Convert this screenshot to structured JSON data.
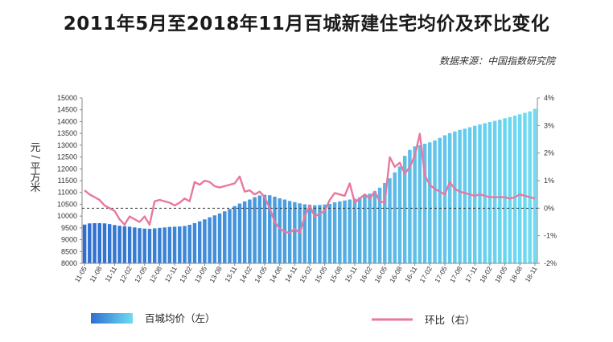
{
  "title": "2011年5月至2018年11月百城新建住宅均价及环比变化",
  "source": "数据来源：中国指数研究院",
  "chart_data": {
    "type": "bar+line",
    "ylabel_left": "元/平方米",
    "ylim_left": [
      8000,
      15000
    ],
    "yticks_left": [
      "8000",
      "8500",
      "9000",
      "9500",
      "10000",
      "10500",
      "11000",
      "11500",
      "12000",
      "12500",
      "13000",
      "13500",
      "14000",
      "14500",
      "15000"
    ],
    "ylim_right": [
      -2,
      4
    ],
    "yticks_right": [
      "-2%",
      "-1%",
      "0%",
      "1%",
      "2%",
      "3%",
      "4%"
    ],
    "x_tick_labels": [
      "11-05",
      "11-08",
      "11-11",
      "12-02",
      "12-05",
      "12-08",
      "12-11",
      "13-02",
      "13-05",
      "13-08",
      "13-11",
      "14-02",
      "14-05",
      "14-08",
      "14-11",
      "15-02",
      "15-05",
      "15-08",
      "15-11",
      "16-02",
      "16-05",
      "16-08",
      "16-11",
      "17-02",
      "17-05",
      "17-08",
      "17-11",
      "18-02",
      "18-05",
      "18-08",
      "18-11"
    ],
    "months": [
      "11-05",
      "11-06",
      "11-07",
      "11-08",
      "11-09",
      "11-10",
      "11-11",
      "11-12",
      "12-01",
      "12-02",
      "12-03",
      "12-04",
      "12-05",
      "12-06",
      "12-07",
      "12-08",
      "12-09",
      "12-10",
      "12-11",
      "12-12",
      "13-01",
      "13-02",
      "13-03",
      "13-04",
      "13-05",
      "13-06",
      "13-07",
      "13-08",
      "13-09",
      "13-10",
      "13-11",
      "13-12",
      "14-01",
      "14-02",
      "14-03",
      "14-04",
      "14-05",
      "14-06",
      "14-07",
      "14-08",
      "14-09",
      "14-10",
      "14-11",
      "14-12",
      "15-01",
      "15-02",
      "15-03",
      "15-04",
      "15-05",
      "15-06",
      "15-07",
      "15-08",
      "15-09",
      "15-10",
      "15-11",
      "15-12",
      "16-01",
      "16-02",
      "16-03",
      "16-04",
      "16-05",
      "16-06",
      "16-07",
      "16-08",
      "16-09",
      "16-10",
      "16-11",
      "16-12",
      "17-01",
      "17-02",
      "17-03",
      "17-04",
      "17-05",
      "17-06",
      "17-07",
      "17-08",
      "17-09",
      "17-10",
      "17-11",
      "17-12",
      "18-01",
      "18-02",
      "18-03",
      "18-04",
      "18-05",
      "18-06",
      "18-07",
      "18-08",
      "18-09",
      "18-10",
      "18-11"
    ],
    "series": [
      {
        "name": "百城均价（左）",
        "kind": "bar",
        "axis": "left",
        "values": [
          9640,
          9690,
          9700,
          9700,
          9690,
          9660,
          9620,
          9590,
          9570,
          9550,
          9520,
          9490,
          9470,
          9460,
          9480,
          9500,
          9520,
          9540,
          9550,
          9560,
          9580,
          9630,
          9700,
          9780,
          9860,
          9950,
          10030,
          10110,
          10200,
          10300,
          10420,
          10530,
          10620,
          10700,
          10800,
          10870,
          10900,
          10880,
          10820,
          10750,
          10700,
          10640,
          10590,
          10540,
          10500,
          10480,
          10460,
          10470,
          10490,
          10520,
          10580,
          10620,
          10660,
          10700,
          10740,
          10790,
          10860,
          10950,
          11050,
          11200,
          11400,
          11600,
          11850,
          12100,
          12550,
          12800,
          12950,
          13000,
          13060,
          13120,
          13200,
          13310,
          13420,
          13510,
          13580,
          13650,
          13700,
          13760,
          13820,
          13880,
          13930,
          13980,
          14030,
          14080,
          14140,
          14190,
          14250,
          14310,
          14370,
          14430,
          14540
        ]
      },
      {
        "name": "环比（右）",
        "kind": "line",
        "axis": "right",
        "values": [
          0.65,
          0.5,
          0.4,
          0.3,
          0.1,
          0.0,
          -0.1,
          -0.4,
          -0.6,
          -0.3,
          -0.4,
          -0.5,
          -0.3,
          -0.6,
          0.25,
          0.3,
          0.25,
          0.2,
          0.1,
          0.2,
          0.35,
          0.25,
          0.95,
          0.85,
          1.0,
          0.95,
          0.8,
          0.75,
          0.8,
          0.85,
          0.9,
          1.15,
          0.6,
          0.65,
          0.5,
          0.6,
          0.4,
          0.0,
          -0.5,
          -0.75,
          -0.85,
          -0.9,
          -0.75,
          -0.9,
          -0.3,
          0.1,
          -0.3,
          -0.2,
          -0.1,
          0.3,
          0.55,
          0.5,
          0.45,
          0.9,
          0.2,
          0.35,
          0.5,
          0.35,
          0.6,
          0.25,
          0.2,
          1.85,
          1.5,
          1.65,
          1.25,
          1.5,
          1.9,
          2.7,
          1.2,
          0.85,
          0.7,
          0.6,
          0.5,
          0.95,
          0.7,
          0.6,
          0.55,
          0.5,
          0.45,
          0.5,
          0.45,
          0.4,
          0.4,
          0.4,
          0.4,
          0.35,
          0.4,
          0.5,
          0.45,
          0.4,
          0.35
        ]
      }
    ],
    "reference_line": {
      "axis": "right",
      "value": 0,
      "style": "dashed"
    },
    "colors": {
      "bar_dark": "#2f6fd0",
      "bar_light": "#6fdcf2",
      "line": "#e8789e",
      "zero_line": "#333333"
    },
    "legend_placement": "bottom"
  }
}
